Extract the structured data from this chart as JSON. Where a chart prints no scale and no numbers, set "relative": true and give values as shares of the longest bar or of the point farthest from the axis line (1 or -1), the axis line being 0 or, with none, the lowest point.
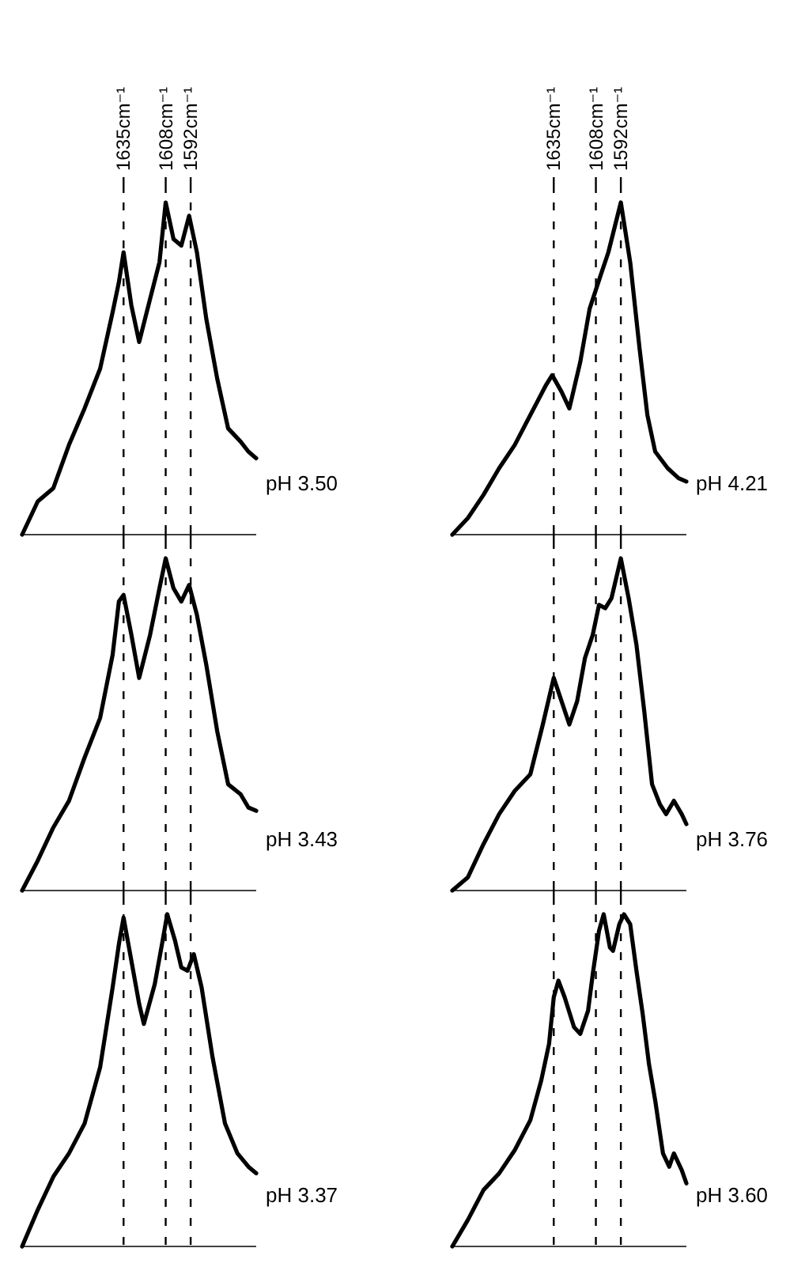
{
  "chart_data": [
    {
      "type": "line",
      "title": "pH 3.50",
      "relative": true,
      "tick_labels": "x",
      "grid": "x",
      "xlim": [
        1700,
        1550
      ],
      "xticks": [
        {
          "value": 1635,
          "label": "1635cm⁻¹"
        },
        {
          "value": 1608,
          "label": "1608cm⁻¹"
        },
        {
          "value": 1592,
          "label": "1592cm⁻¹"
        }
      ],
      "x": [
        1700,
        1690,
        1680,
        1670,
        1660,
        1650,
        1642,
        1638,
        1635,
        1630,
        1625,
        1618,
        1612,
        1608,
        1603,
        1598,
        1593,
        1588,
        1582,
        1575,
        1568,
        1560,
        1555,
        1550
      ],
      "series": [
        {
          "color": "#000000",
          "values": [
            0,
            0.1,
            0.14,
            0.27,
            0.38,
            0.5,
            0.67,
            0.76,
            0.85,
            0.69,
            0.58,
            0.71,
            0.82,
            1.0,
            0.89,
            0.87,
            0.96,
            0.85,
            0.65,
            0.47,
            0.32,
            0.28,
            0.25,
            0.23
          ]
        }
      ]
    },
    {
      "type": "line",
      "title": "pH 4.21",
      "relative": true,
      "tick_labels": "x",
      "grid": "x",
      "xlim": [
        1700,
        1550
      ],
      "xticks": [
        {
          "value": 1635,
          "label": "1635cm⁻¹"
        },
        {
          "value": 1608,
          "label": "1608cm⁻¹"
        },
        {
          "value": 1592,
          "label": "1592cm⁻¹"
        }
      ],
      "x": [
        1700,
        1690,
        1680,
        1670,
        1660,
        1650,
        1640,
        1636,
        1630,
        1625,
        1618,
        1612,
        1605,
        1600,
        1592,
        1586,
        1580,
        1575,
        1570,
        1562,
        1555,
        1550
      ],
      "series": [
        {
          "color": "#000000",
          "values": [
            0,
            0.05,
            0.12,
            0.2,
            0.27,
            0.36,
            0.45,
            0.48,
            0.43,
            0.38,
            0.52,
            0.68,
            0.78,
            0.85,
            1.0,
            0.82,
            0.56,
            0.36,
            0.25,
            0.2,
            0.17,
            0.16
          ]
        }
      ]
    },
    {
      "type": "line",
      "title": "pH 3.43",
      "relative": true,
      "tick_labels": false,
      "grid": "x",
      "xlim": [
        1700,
        1550
      ],
      "xticks": [
        {
          "value": 1635,
          "label": null
        },
        {
          "value": 1608,
          "label": null
        },
        {
          "value": 1592,
          "label": null
        }
      ],
      "x": [
        1700,
        1690,
        1680,
        1670,
        1660,
        1650,
        1642,
        1638,
        1635,
        1630,
        1625,
        1618,
        1612,
        1608,
        1603,
        1598,
        1593,
        1588,
        1582,
        1575,
        1568,
        1560,
        1555,
        1550
      ],
      "series": [
        {
          "color": "#000000",
          "values": [
            0,
            0.09,
            0.19,
            0.27,
            0.4,
            0.52,
            0.71,
            0.87,
            0.89,
            0.77,
            0.64,
            0.77,
            0.91,
            1.0,
            0.91,
            0.87,
            0.92,
            0.83,
            0.68,
            0.48,
            0.32,
            0.29,
            0.25,
            0.24
          ]
        }
      ]
    },
    {
      "type": "line",
      "title": "pH 3.76",
      "relative": true,
      "tick_labels": false,
      "grid": "x",
      "xlim": [
        1700,
        1550
      ],
      "xticks": [
        {
          "value": 1635,
          "label": null
        },
        {
          "value": 1608,
          "label": null
        },
        {
          "value": 1592,
          "label": null
        }
      ],
      "x": [
        1700,
        1690,
        1680,
        1670,
        1660,
        1650,
        1642,
        1635,
        1630,
        1625,
        1620,
        1615,
        1610,
        1606,
        1602,
        1598,
        1592,
        1587,
        1582,
        1577,
        1572,
        1567,
        1563,
        1558,
        1553,
        1550
      ],
      "series": [
        {
          "color": "#000000",
          "values": [
            0,
            0.04,
            0.14,
            0.23,
            0.3,
            0.35,
            0.5,
            0.64,
            0.57,
            0.5,
            0.57,
            0.7,
            0.77,
            0.86,
            0.85,
            0.88,
            1.0,
            0.88,
            0.74,
            0.54,
            0.32,
            0.26,
            0.23,
            0.27,
            0.23,
            0.2
          ]
        }
      ]
    },
    {
      "type": "line",
      "title": "pH 3.37",
      "relative": true,
      "tick_labels": false,
      "grid": "x",
      "xlim": [
        1700,
        1550
      ],
      "xticks": [
        {
          "value": 1635,
          "label": null
        },
        {
          "value": 1608,
          "label": null
        },
        {
          "value": 1592,
          "label": null
        }
      ],
      "x": [
        1700,
        1690,
        1680,
        1670,
        1660,
        1650,
        1642,
        1638,
        1635,
        1630,
        1625,
        1622,
        1615,
        1610,
        1607,
        1602,
        1598,
        1594,
        1590,
        1585,
        1578,
        1570,
        1562,
        1555,
        1550
      ],
      "series": [
        {
          "color": "#000000",
          "values": [
            0,
            0.11,
            0.21,
            0.28,
            0.37,
            0.54,
            0.78,
            0.91,
            0.99,
            0.86,
            0.73,
            0.67,
            0.79,
            0.92,
            1.0,
            0.92,
            0.84,
            0.83,
            0.88,
            0.78,
            0.57,
            0.37,
            0.28,
            0.24,
            0.22
          ]
        }
      ]
    },
    {
      "type": "line",
      "title": "pH 3.60",
      "relative": true,
      "tick_labels": false,
      "grid": "x",
      "xlim": [
        1700,
        1550
      ],
      "xticks": [
        {
          "value": 1635,
          "label": null
        },
        {
          "value": 1608,
          "label": null
        },
        {
          "value": 1592,
          "label": null
        }
      ],
      "x": [
        1700,
        1690,
        1680,
        1670,
        1660,
        1650,
        1643,
        1638,
        1635,
        1632,
        1628,
        1622,
        1618,
        1613,
        1610,
        1606,
        1603,
        1599,
        1597,
        1593,
        1590,
        1586,
        1582,
        1578,
        1574,
        1570,
        1565,
        1561,
        1558,
        1553,
        1550
      ],
      "series": [
        {
          "color": "#000000",
          "values": [
            0,
            0.08,
            0.17,
            0.22,
            0.29,
            0.38,
            0.5,
            0.61,
            0.75,
            0.8,
            0.75,
            0.66,
            0.64,
            0.71,
            0.82,
            0.95,
            1.0,
            0.9,
            0.89,
            0.97,
            1.0,
            0.97,
            0.83,
            0.7,
            0.55,
            0.44,
            0.28,
            0.24,
            0.28,
            0.23,
            0.19
          ]
        }
      ]
    }
  ]
}
